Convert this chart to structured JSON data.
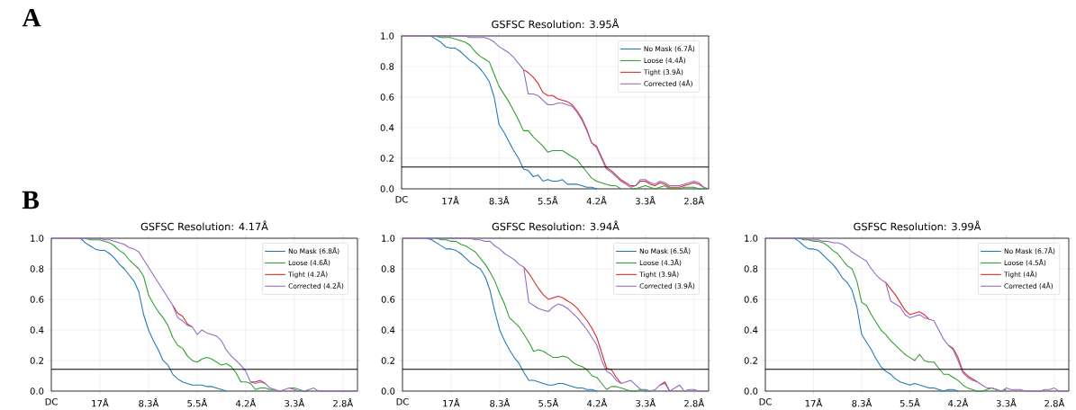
{
  "chart_data": [
    {
      "type": "line",
      "title": "GSFSC Resolution: 3.95Å",
      "annotations": [
        "A"
      ],
      "ylim": [
        0,
        1
      ],
      "categories": [
        "DC",
        null,
        null,
        null,
        null,
        null,
        null,
        null,
        null,
        null,
        "17Å",
        null,
        null,
        null,
        null,
        null,
        null,
        null,
        null,
        null,
        "8.3Å",
        null,
        null,
        null,
        null,
        null,
        null,
        null,
        null,
        null,
        "5.5Å",
        null,
        null,
        null,
        null,
        null,
        null,
        null,
        null,
        null,
        "4.2Å",
        null,
        null,
        null,
        null,
        null,
        null,
        null,
        null,
        null,
        "3.3Å",
        null,
        null,
        null,
        null,
        null,
        null,
        null,
        null,
        null,
        "2.8Å",
        null,
        null,
        null
      ],
      "yticks": [
        {
          "value": 0,
          "label": "0.0"
        },
        {
          "value": 0.2,
          "label": "0.2"
        },
        {
          "value": 0.4,
          "label": "0.4"
        },
        {
          "value": 0.6,
          "label": "0.6"
        },
        {
          "value": 0.8,
          "label": "0.8"
        },
        {
          "value": 1,
          "label": "1.0"
        }
      ],
      "grid": true,
      "legend": "top right",
      "ref_lines": [
        {
          "axis": "y",
          "value": 0.143,
          "color": "#000000"
        }
      ],
      "series": [
        {
          "name": "No Mask (6.7Å)",
          "color": "#1f77b4",
          "values": [
            null,
            null,
            null,
            null,
            null,
            null,
            1,
            0.98,
            0.96,
            0.93,
            0.92,
            0.92,
            0.9,
            0.87,
            0.84,
            0.82,
            0.79,
            0.75,
            0.7,
            0.6,
            0.42,
            0.37,
            0.31,
            0.25,
            0.2,
            0.13,
            0.12,
            0.08,
            0.09,
            0.05,
            0.06,
            0.05,
            0.05,
            0.06,
            0.03,
            0.03,
            0.03,
            0.02,
            0.01,
            0.01,
            0,
            null,
            null,
            null,
            null,
            null,
            null,
            null,
            null,
            null,
            null,
            null,
            null,
            null,
            null,
            null,
            null,
            null,
            null,
            null,
            null,
            null,
            null,
            null
          ]
        },
        {
          "name": "Loose (4.4Å)",
          "color": "#2ca02c",
          "values": [
            null,
            null,
            null,
            null,
            null,
            null,
            null,
            1,
            0.99,
            0.99,
            0.99,
            0.98,
            0.97,
            0.96,
            0.94,
            0.9,
            0.87,
            0.85,
            0.83,
            0.75,
            0.67,
            0.62,
            0.57,
            0.51,
            0.45,
            0.38,
            0.38,
            0.34,
            0.31,
            0.28,
            0.24,
            0.25,
            0.25,
            0.25,
            0.23,
            0.21,
            0.19,
            0.15,
            0.11,
            0.07,
            0.05,
            0.04,
            0.03,
            0.02,
            0.02,
            0,
            null,
            0,
            0,
            0.01,
            0.02,
            0.01,
            0,
            0.01,
            0.02,
            0,
            0,
            0,
            0.01,
            0.01,
            0.01,
            0,
            0,
            0
          ]
        },
        {
          "name": "Tight (3.9Å)",
          "color": "#d62728",
          "values": [
            null,
            null,
            null,
            null,
            null,
            null,
            null,
            null,
            null,
            null,
            null,
            null,
            null,
            null,
            null,
            null,
            null,
            null,
            null,
            null,
            null,
            null,
            null,
            null,
            null,
            0.78,
            0.76,
            0.73,
            0.69,
            0.63,
            0.61,
            0.61,
            0.59,
            0.58,
            0.57,
            0.55,
            0.51,
            0.46,
            0.39,
            0.3,
            0.28,
            0.21,
            0.14,
            0.12,
            0.09,
            0.06,
            0.04,
            0.02,
            0.02,
            0.05,
            0.05,
            0.03,
            0.02,
            0.04,
            0.03,
            0.01,
            0.01,
            0.01,
            0.02,
            0.03,
            0.04,
            0.03,
            0.01,
            null
          ]
        },
        {
          "name": "Corrected (4Å)",
          "color": "#9467bd",
          "values": [
            1,
            1,
            1,
            1,
            1,
            1,
            1,
            1,
            1,
            1,
            1,
            1,
            1,
            1,
            0.99,
            0.99,
            0.99,
            0.99,
            0.98,
            0.96,
            0.93,
            0.91,
            0.89,
            0.86,
            0.82,
            0.78,
            0.62,
            0.62,
            0.61,
            0.58,
            0.55,
            0.55,
            0.56,
            0.56,
            0.55,
            0.54,
            0.5,
            0.45,
            0.38,
            0.3,
            0.27,
            0.2,
            0.13,
            0.11,
            0.08,
            0.05,
            0.03,
            0.01,
            0.02,
            0.06,
            0.06,
            0.04,
            0.03,
            0.05,
            0.04,
            0.02,
            0.02,
            0.02,
            0.03,
            0.04,
            0.05,
            0.04,
            0.01,
            0
          ]
        }
      ]
    },
    {
      "type": "line",
      "title": "GSFSC Resolution: 4.17Å",
      "annotations": [
        "B"
      ],
      "ylim": [
        0,
        1
      ],
      "categories": [
        "DC",
        null,
        null,
        null,
        null,
        null,
        null,
        null,
        null,
        null,
        "17Å",
        null,
        null,
        null,
        null,
        null,
        null,
        null,
        null,
        null,
        "8.3Å",
        null,
        null,
        null,
        null,
        null,
        null,
        null,
        null,
        null,
        "5.5Å",
        null,
        null,
        null,
        null,
        null,
        null,
        null,
        null,
        null,
        "4.2Å",
        null,
        null,
        null,
        null,
        null,
        null,
        null,
        null,
        null,
        "3.3Å",
        null,
        null,
        null,
        null,
        null,
        null,
        null,
        null,
        null,
        "2.8Å",
        null,
        null,
        null
      ],
      "yticks": [
        {
          "value": 0,
          "label": "0.0"
        },
        {
          "value": 0.2,
          "label": "0.2"
        },
        {
          "value": 0.4,
          "label": "0.4"
        },
        {
          "value": 0.6,
          "label": "0.6"
        },
        {
          "value": 0.8,
          "label": "0.8"
        },
        {
          "value": 1,
          "label": "1.0"
        }
      ],
      "grid": true,
      "legend": "top right",
      "ref_lines": [
        {
          "axis": "y",
          "value": 0.143,
          "color": "#000000"
        }
      ],
      "series": [
        {
          "name": "No Mask (6.8Å)",
          "color": "#1f77b4",
          "values": [
            null,
            null,
            null,
            null,
            null,
            null,
            1,
            0.97,
            0.95,
            0.93,
            0.92,
            0.92,
            0.9,
            0.87,
            0.83,
            0.8,
            0.76,
            0.72,
            0.65,
            0.5,
            0.4,
            0.33,
            0.27,
            0.2,
            0.17,
            0.11,
            0.08,
            0.06,
            0.05,
            0.04,
            0.04,
            0.04,
            0.03,
            0.03,
            0.02,
            0.01,
            0,
            null,
            null,
            null,
            null,
            null,
            null,
            null,
            null,
            null,
            null,
            null,
            null,
            null,
            null,
            null,
            null,
            null,
            null,
            null,
            null,
            null,
            null,
            null,
            null,
            null,
            null,
            null
          ]
        },
        {
          "name": "Loose (4.6Å)",
          "color": "#2ca02c",
          "values": [
            null,
            null,
            null,
            null,
            null,
            null,
            null,
            1,
            0.99,
            0.99,
            0.99,
            0.98,
            0.97,
            0.95,
            0.92,
            0.9,
            0.86,
            0.83,
            0.8,
            0.75,
            0.63,
            0.57,
            0.52,
            0.48,
            0.43,
            0.35,
            0.3,
            0.28,
            0.23,
            0.2,
            0.19,
            0.21,
            0.22,
            0.21,
            0.19,
            0.17,
            0.18,
            0.16,
            0.12,
            0.06,
            0.06,
            0.05,
            0.01,
            0.02,
            0.02,
            0.01,
            0.01,
            null,
            null,
            0.02,
            0.02,
            0.01,
            0,
            0,
            null,
            null,
            null,
            null,
            null,
            null,
            null,
            null,
            null,
            null
          ]
        },
        {
          "name": "Tight (4.2Å)",
          "color": "#d62728",
          "values": [
            null,
            null,
            null,
            null,
            null,
            null,
            null,
            null,
            null,
            null,
            null,
            null,
            null,
            null,
            null,
            null,
            null,
            null,
            null,
            null,
            null,
            null,
            null,
            null,
            null,
            0.56,
            0.51,
            0.49,
            0.44,
            0.42,
            null,
            null,
            null,
            null,
            null,
            null,
            null,
            null,
            null,
            null,
            null,
            0.06,
            0.06,
            0.07,
            0.05,
            null,
            null,
            null,
            null,
            null,
            null,
            null,
            null,
            null,
            null,
            null,
            null,
            null,
            null,
            null,
            null,
            null,
            null,
            null
          ]
        },
        {
          "name": "Corrected (4.2Å)",
          "color": "#9467bd",
          "values": [
            1,
            1,
            1,
            1,
            1,
            1,
            1,
            1,
            1,
            1,
            1,
            0.99,
            0.99,
            0.98,
            0.97,
            0.96,
            0.94,
            0.93,
            0.91,
            0.86,
            0.81,
            0.76,
            0.71,
            0.66,
            0.61,
            0.56,
            0.48,
            0.46,
            0.43,
            0.42,
            0.37,
            0.4,
            0.38,
            0.37,
            0.36,
            0.33,
            0.27,
            0.23,
            0.2,
            0.17,
            0.13,
            0.06,
            0.05,
            0.06,
            0.05,
            0.02,
            0.01,
            0,
            0.01,
            0.02,
            0.01,
            0,
            0,
            0.01,
            0.02,
            0,
            0,
            0,
            0,
            0,
            0,
            0,
            0,
            0
          ]
        }
      ]
    },
    {
      "type": "line",
      "title": "GSFSC Resolution: 3.94Å",
      "ylim": [
        0,
        1
      ],
      "categories": [
        "DC",
        null,
        null,
        null,
        null,
        null,
        null,
        null,
        null,
        null,
        "17Å",
        null,
        null,
        null,
        null,
        null,
        null,
        null,
        null,
        null,
        "8.3Å",
        null,
        null,
        null,
        null,
        null,
        null,
        null,
        null,
        null,
        "5.5Å",
        null,
        null,
        null,
        null,
        null,
        null,
        null,
        null,
        null,
        "4.2Å",
        null,
        null,
        null,
        null,
        null,
        null,
        null,
        null,
        null,
        "3.3Å",
        null,
        null,
        null,
        null,
        null,
        null,
        null,
        null,
        null,
        "2.8Å",
        null,
        null,
        null
      ],
      "yticks": [
        {
          "value": 0,
          "label": "0.0"
        },
        {
          "value": 0.2,
          "label": "0.2"
        },
        {
          "value": 0.4,
          "label": "0.4"
        },
        {
          "value": 0.6,
          "label": "0.6"
        },
        {
          "value": 0.8,
          "label": "0.8"
        },
        {
          "value": 1,
          "label": "1.0"
        }
      ],
      "grid": true,
      "legend": "top right",
      "ref_lines": [
        {
          "axis": "y",
          "value": 0.143,
          "color": "#000000"
        }
      ],
      "series": [
        {
          "name": "No Mask (6.5Å)",
          "color": "#1f77b4",
          "values": [
            null,
            null,
            null,
            null,
            null,
            1,
            0.99,
            0.97,
            0.95,
            0.93,
            0.93,
            0.92,
            0.9,
            0.87,
            0.84,
            0.82,
            0.8,
            0.75,
            0.66,
            0.52,
            0.4,
            0.33,
            0.27,
            0.22,
            0.18,
            0.12,
            0.07,
            0.07,
            0.06,
            0.05,
            0.04,
            0.04,
            0.05,
            0.05,
            0.04,
            0.03,
            0.02,
            0.02,
            0.01,
            0.01,
            0,
            null,
            null,
            null,
            null,
            null,
            null,
            null,
            null,
            null,
            null,
            null,
            null,
            null,
            null,
            null,
            null,
            null,
            null,
            null,
            null,
            null,
            null,
            null
          ]
        },
        {
          "name": "Loose (4.3Å)",
          "color": "#2ca02c",
          "values": [
            null,
            null,
            null,
            null,
            null,
            null,
            null,
            1,
            0.99,
            0.99,
            0.98,
            0.98,
            0.96,
            0.95,
            0.93,
            0.91,
            0.87,
            0.83,
            0.78,
            0.72,
            0.64,
            0.57,
            0.48,
            0.45,
            0.42,
            0.37,
            0.32,
            0.26,
            0.27,
            0.26,
            0.24,
            0.22,
            0.22,
            0.23,
            0.22,
            0.19,
            0.17,
            0.16,
            0.14,
            0.1,
            0.09,
            0.05,
            0.01,
            0.03,
            0.03,
            0.02,
            0.01,
            0,
            0,
            0.01,
            0.01,
            0,
            null,
            null,
            null,
            null,
            null,
            null,
            null,
            null,
            null,
            null,
            null,
            null
          ]
        },
        {
          "name": "Tight (3.9Å)",
          "color": "#d62728",
          "values": [
            null,
            null,
            null,
            null,
            null,
            null,
            null,
            null,
            null,
            null,
            null,
            null,
            null,
            null,
            null,
            null,
            null,
            null,
            null,
            null,
            null,
            null,
            null,
            null,
            null,
            0.81,
            0.77,
            0.72,
            0.67,
            0.63,
            0.6,
            0.61,
            0.62,
            0.61,
            0.59,
            0.57,
            0.54,
            0.5,
            0.46,
            0.41,
            0.35,
            0.25,
            0.15,
            0.14,
            0.09,
            0.05,
            null,
            null,
            null,
            null,
            null,
            null,
            null,
            0.04,
            0.06,
            0,
            null,
            null,
            null,
            null,
            null,
            null,
            null,
            null
          ]
        },
        {
          "name": "Corrected (3.9Å)",
          "color": "#9467bd",
          "values": [
            1,
            1,
            1,
            1,
            1,
            1,
            1,
            1,
            1,
            1,
            1,
            1,
            1,
            1,
            1,
            0.99,
            0.99,
            0.98,
            0.98,
            0.95,
            0.93,
            0.9,
            0.88,
            0.86,
            0.83,
            0.81,
            0.58,
            0.56,
            0.54,
            0.53,
            0.52,
            0.55,
            0.57,
            0.56,
            0.54,
            0.51,
            0.48,
            0.44,
            0.4,
            0.35,
            0.3,
            0.2,
            0.13,
            0.11,
            0.07,
            0.05,
            0.06,
            0.07,
            0.04,
            0.01,
            0,
            0,
            0.01,
            0.04,
            0.05,
            0,
            0.02,
            0.04,
            0,
            0.01,
            0.01,
            0,
            0,
            0
          ]
        }
      ]
    },
    {
      "type": "line",
      "title": "GSFSC Resolution: 3.99Å",
      "ylim": [
        0,
        1
      ],
      "categories": [
        "DC",
        null,
        null,
        null,
        null,
        null,
        null,
        null,
        null,
        null,
        "17Å",
        null,
        null,
        null,
        null,
        null,
        null,
        null,
        null,
        null,
        "8.3Å",
        null,
        null,
        null,
        null,
        null,
        null,
        null,
        null,
        null,
        "5.5Å",
        null,
        null,
        null,
        null,
        null,
        null,
        null,
        null,
        null,
        "4.2Å",
        null,
        null,
        null,
        null,
        null,
        null,
        null,
        null,
        null,
        "3.3Å",
        null,
        null,
        null,
        null,
        null,
        null,
        null,
        null,
        null,
        "2.8Å",
        null,
        null,
        null
      ],
      "yticks": [
        {
          "value": 0,
          "label": "0.0"
        },
        {
          "value": 0.2,
          "label": "0.2"
        },
        {
          "value": 0.4,
          "label": "0.4"
        },
        {
          "value": 0.6,
          "label": "0.6"
        },
        {
          "value": 0.8,
          "label": "0.8"
        },
        {
          "value": 1,
          "label": "1.0"
        }
      ],
      "grid": true,
      "legend": "top right",
      "ref_lines": [
        {
          "axis": "y",
          "value": 0.143,
          "color": "#000000"
        }
      ],
      "series": [
        {
          "name": "No Mask (6.7Å)",
          "color": "#1f77b4",
          "values": [
            null,
            null,
            null,
            null,
            null,
            null,
            1,
            0.98,
            0.95,
            0.93,
            0.93,
            0.92,
            0.89,
            0.86,
            0.83,
            0.79,
            0.74,
            0.71,
            0.66,
            0.55,
            0.37,
            0.32,
            0.27,
            0.21,
            0.16,
            0.13,
            0.11,
            0.08,
            0.06,
            0.05,
            0.04,
            0.05,
            0.04,
            0.03,
            0.02,
            0.02,
            0.01,
            0,
            0.01,
            0.01,
            0,
            null,
            null,
            null,
            null,
            null,
            null,
            null,
            null,
            null,
            null,
            null,
            null,
            null,
            null,
            null,
            null,
            null,
            null,
            null,
            null,
            null,
            null,
            null
          ]
        },
        {
          "name": "Loose (4.5Å)",
          "color": "#2ca02c",
          "values": [
            null,
            null,
            null,
            null,
            null,
            null,
            null,
            1,
            0.99,
            0.99,
            0.98,
            0.98,
            0.97,
            0.95,
            0.92,
            0.9,
            0.86,
            0.82,
            0.8,
            0.72,
            0.58,
            0.56,
            0.5,
            0.45,
            0.4,
            0.37,
            0.33,
            0.3,
            0.27,
            0.24,
            0.22,
            0.2,
            0.24,
            0.2,
            0.19,
            0.19,
            0.15,
            0.11,
            0.11,
            0.09,
            0.07,
            0.04,
            0.02,
            0.01,
            0,
            0,
            0.01,
            0.02,
            0.01,
            0,
            0.01,
            null,
            null,
            null,
            null,
            null,
            null,
            null,
            null,
            null,
            null,
            null,
            null,
            null
          ]
        },
        {
          "name": "Tight (4Å)",
          "color": "#d62728",
          "values": [
            null,
            null,
            null,
            null,
            null,
            null,
            null,
            null,
            null,
            null,
            null,
            null,
            null,
            null,
            null,
            null,
            null,
            null,
            null,
            null,
            null,
            null,
            null,
            null,
            null,
            0.71,
            0.67,
            0.63,
            0.58,
            0.53,
            0.5,
            0.51,
            0.52,
            0.5,
            0.47,
            null,
            null,
            null,
            0.3,
            0.28,
            0.22,
            0.13,
            0.1,
            0.08,
            0.06,
            null,
            null,
            null,
            null,
            null,
            null,
            null,
            null,
            null,
            null,
            null,
            null,
            null,
            null,
            null,
            null,
            null,
            null,
            null
          ]
        },
        {
          "name": "Corrected (4Å)",
          "color": "#9467bd",
          "values": [
            1,
            1,
            1,
            1,
            1,
            1,
            1,
            1,
            1,
            0.99,
            0.99,
            0.99,
            0.98,
            0.98,
            0.97,
            0.97,
            0.96,
            0.94,
            0.91,
            0.89,
            0.87,
            0.85,
            0.8,
            0.76,
            0.73,
            0.71,
            0.59,
            0.57,
            0.55,
            0.5,
            0.48,
            0.49,
            0.5,
            0.48,
            0.47,
            0.46,
            0.4,
            0.34,
            0.3,
            0.27,
            0.2,
            0.12,
            0.09,
            0.07,
            0.06,
            0.04,
            0.02,
            0.02,
            0.01,
            0,
            0.02,
            0.01,
            0.01,
            0.01,
            0,
            0,
            0,
            0,
            0.01,
            0.01,
            0.02,
            0,
            0,
            0
          ]
        }
      ]
    }
  ]
}
